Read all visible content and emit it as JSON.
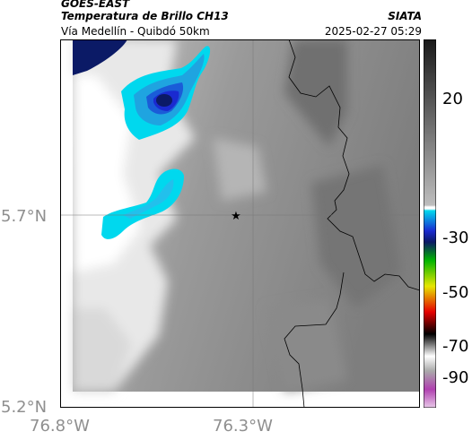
{
  "header": {
    "satellite": "GOES-EAST",
    "product": "Temperatura de Brillo CH13",
    "route": "Vía Medellín - Quibdó 50km",
    "organization": "SIATA",
    "timestamp": "2025-02-27 05:29"
  },
  "map": {
    "lat_ticks": [
      "5.7°N",
      "5.2°N"
    ],
    "lon_ticks": [
      "76.8°W",
      "76.3°W"
    ],
    "marker": "star-marker",
    "layers": [
      "brightness-temperature-field",
      "borders",
      "graticule"
    ]
  },
  "colorbar": {
    "labels": [
      "20",
      "-30",
      "-50",
      "-70",
      "-90"
    ],
    "colors": {
      "warm_gray_dark": "#2a2a2a",
      "cold_white": "#ffffff",
      "cyan": "#00d8ee",
      "blue": "#1a2ad0",
      "navy": "#0b1a66",
      "green": "#00b400",
      "yellow": "#e6e600",
      "red": "#e60000",
      "magenta": "#b040b0"
    }
  }
}
